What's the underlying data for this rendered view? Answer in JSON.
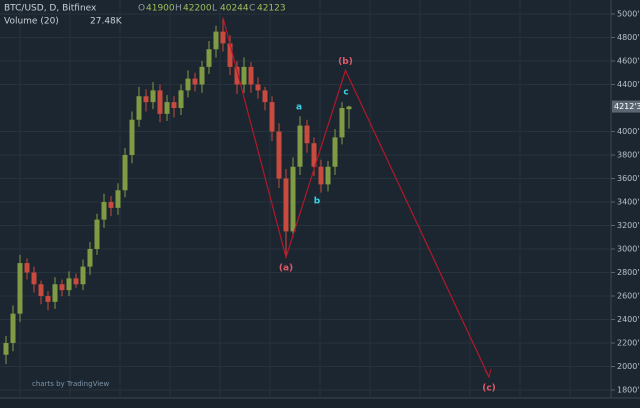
{
  "chart_data": {
    "type": "candlestick",
    "title": "BTC/USD, D, Bitfinex",
    "ohlc_legend": [
      {
        "key": "O",
        "value": 41900
      },
      {
        "key": "H",
        "value": 42200
      },
      {
        "key": "L",
        "value": 40244
      },
      {
        "key": "C",
        "value": 42123
      }
    ],
    "volume_label": "Volume (20)",
    "volume_value": "27.48K",
    "credit": "charts by TradingView",
    "up_color": "#7f9c45",
    "down_color": "#c94a3f",
    "wave_color": "#b3182a",
    "grid": true,
    "open": [
      21000,
      22000,
      24500,
      28800,
      28000,
      27000,
      26000,
      25500,
      27000,
      26500,
      27500,
      27000,
      28500,
      30000,
      32500,
      34000,
      33500,
      35000,
      38000,
      41000,
      43000,
      42500,
      43500,
      41500,
      42500,
      42000,
      43500,
      44500,
      44000,
      45500,
      47000,
      48500,
      47500,
      45500,
      44000,
      45500,
      44000,
      43500,
      42500,
      40000,
      36000,
      31500,
      37000,
      40500,
      39000,
      37000,
      35500,
      37000,
      39500,
      41900
    ],
    "high": [
      22600,
      25200,
      29500,
      29200,
      28500,
      27300,
      26400,
      27600,
      27400,
      28100,
      27900,
      29100,
      30600,
      33000,
      34700,
      34500,
      35600,
      38600,
      41700,
      43800,
      43600,
      44200,
      44000,
      43100,
      43000,
      44000,
      45200,
      45000,
      46000,
      47700,
      49000,
      49700,
      48200,
      46000,
      46300,
      45900,
      44600,
      43800,
      43000,
      40700,
      36800,
      37800,
      41300,
      41000,
      39500,
      37600,
      37500,
      40200,
      42500,
      42200
    ],
    "low": [
      20200,
      21300,
      23800,
      27400,
      26300,
      25300,
      24800,
      24900,
      26000,
      26000,
      26700,
      26500,
      27800,
      29500,
      31800,
      32800,
      32900,
      34400,
      37300,
      40400,
      41700,
      41900,
      40800,
      40900,
      41200,
      41400,
      42900,
      43400,
      43300,
      44900,
      46300,
      46800,
      44800,
      43200,
      43300,
      43300,
      42800,
      41800,
      39200,
      35200,
      29500,
      31000,
      36300,
      38200,
      36200,
      34800,
      34900,
      36300,
      38900,
      40244
    ],
    "close": [
      22000,
      24500,
      28800,
      28000,
      27000,
      26000,
      25500,
      27000,
      26500,
      27500,
      27000,
      28500,
      30000,
      32500,
      34000,
      33500,
      35000,
      38000,
      41000,
      43000,
      42500,
      43500,
      41500,
      42500,
      42000,
      43500,
      44500,
      44000,
      45500,
      47000,
      48500,
      47500,
      45500,
      44000,
      45500,
      44000,
      43500,
      42500,
      40000,
      36000,
      31500,
      37000,
      40500,
      39000,
      37000,
      35500,
      37000,
      39500,
      42000,
      42123
    ],
    "wave": {
      "x": [
        31,
        40,
        48.5,
        69
      ],
      "y": [
        49700,
        29300,
        45200,
        19100
      ]
    },
    "wave_labels": [
      "(a)",
      "(b)",
      "(c)"
    ],
    "subwave_labels": [
      "a",
      "b",
      "c"
    ],
    "last_price": {
      "value": 42123,
      "label": "4212'3"
    },
    "ylim": [
      18000,
      50000
    ],
    "yticks": [
      {
        "value": 18000,
        "label": "1800'0"
      },
      {
        "value": 20000,
        "label": "2000'0"
      },
      {
        "value": 22000,
        "label": "2200'0"
      },
      {
        "value": 24000,
        "label": "2400'0"
      },
      {
        "value": 26000,
        "label": "2600'0"
      },
      {
        "value": 28000,
        "label": "2800'0"
      },
      {
        "value": 30000,
        "label": "3000'0"
      },
      {
        "value": 32000,
        "label": "3200'0"
      },
      {
        "value": 34000,
        "label": "3400'0"
      },
      {
        "value": 36000,
        "label": "3600'0"
      },
      {
        "value": 38000,
        "label": "3800'0"
      },
      {
        "value": 40000,
        "label": "4000'0"
      },
      {
        "value": 44000,
        "label": "4400'0"
      },
      {
        "value": 46000,
        "label": "4600'0"
      },
      {
        "value": 48000,
        "label": "4800'0"
      },
      {
        "value": 50000,
        "label": "5000'0"
      }
    ]
  }
}
